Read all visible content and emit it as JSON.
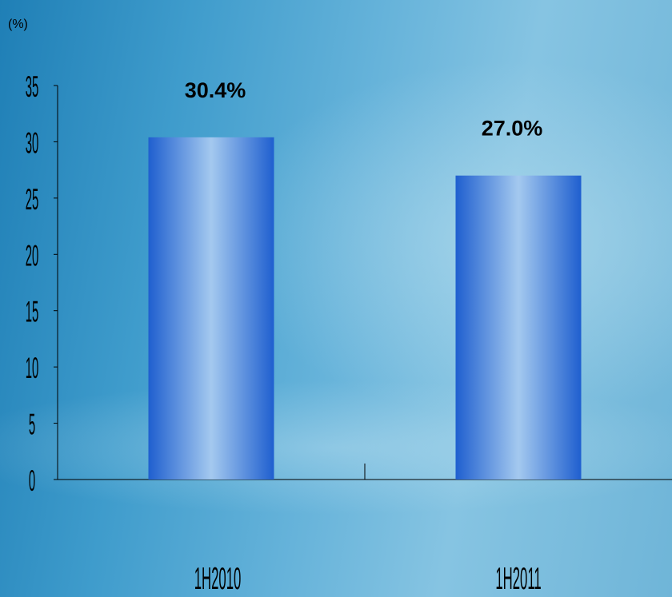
{
  "chart_data": {
    "type": "bar",
    "unit_label": "(%)",
    "categories": [
      "1H2010",
      "1H2011"
    ],
    "values": [
      30.4,
      27.0
    ],
    "data_labels": [
      "30.4%",
      "27.0%"
    ],
    "yticks": [
      "0",
      "5",
      "10",
      "15",
      "20",
      "25",
      "30",
      "35"
    ],
    "ylim": [
      0,
      35
    ],
    "grid": false,
    "colors": {
      "bar_edge": "#1f5fcf",
      "bar_center": "#a4c9ef",
      "axis": "#000000",
      "text": "#000000"
    }
  }
}
